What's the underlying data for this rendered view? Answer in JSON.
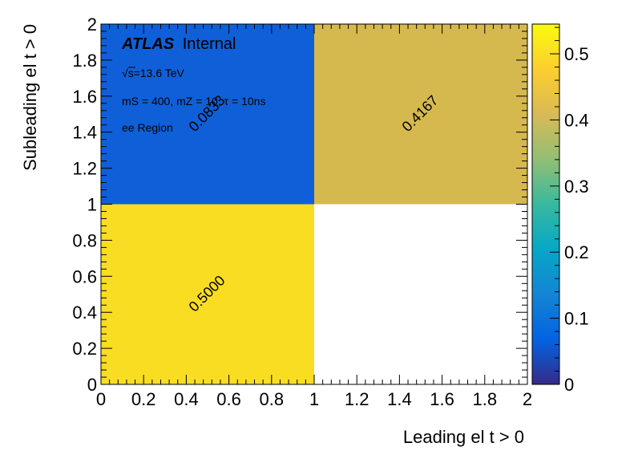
{
  "chart_data": {
    "type": "heatmap",
    "xlabel": "Leading el t > 0",
    "ylabel": "Subleading el t > 0",
    "xlim": [
      0,
      2
    ],
    "ylim": [
      0,
      2
    ],
    "x_ticks": [
      "0",
      "0.2",
      "0.4",
      "0.6",
      "0.8",
      "1",
      "1.2",
      "1.4",
      "1.6",
      "1.8",
      "2"
    ],
    "y_ticks": [
      "0",
      "0.2",
      "0.4",
      "0.6",
      "0.8",
      "1",
      "1.2",
      "1.4",
      "1.6",
      "1.8",
      "2"
    ],
    "x_bins": [
      0,
      1,
      2
    ],
    "y_bins": [
      0,
      1,
      2
    ],
    "cells": [
      {
        "x_bin": [
          0,
          1
        ],
        "y_bin": [
          0,
          1
        ],
        "value": 0.5,
        "label": "0.5000",
        "color": "#f9dd23"
      },
      {
        "x_bin": [
          0,
          1
        ],
        "y_bin": [
          1,
          2
        ],
        "value": 0.0833,
        "label": "0.0833",
        "color": "#0f5fd8"
      },
      {
        "x_bin": [
          1,
          2
        ],
        "y_bin": [
          1,
          2
        ],
        "value": 0.4167,
        "label": "0.4167",
        "color": "#d6b94e"
      }
    ],
    "colorbar": {
      "min": 0,
      "max": 0.545,
      "ticks": [
        "0",
        "0.1",
        "0.2",
        "0.3",
        "0.4",
        "0.5"
      ],
      "colors": [
        "#352a87",
        "#0363e1",
        "#1485d4",
        "#06a7c6",
        "#38b99e",
        "#92bf73",
        "#d9ba56",
        "#fcce2e",
        "#f9fb0e"
      ]
    },
    "annotations": {
      "experiment": "ATLAS",
      "status": "Internal",
      "energy_sqrt": "√",
      "energy_value": "s=13.6 TeV",
      "signal": "mS = 400, mZ = 10, τ = 10ns",
      "region": "ee Region"
    }
  }
}
